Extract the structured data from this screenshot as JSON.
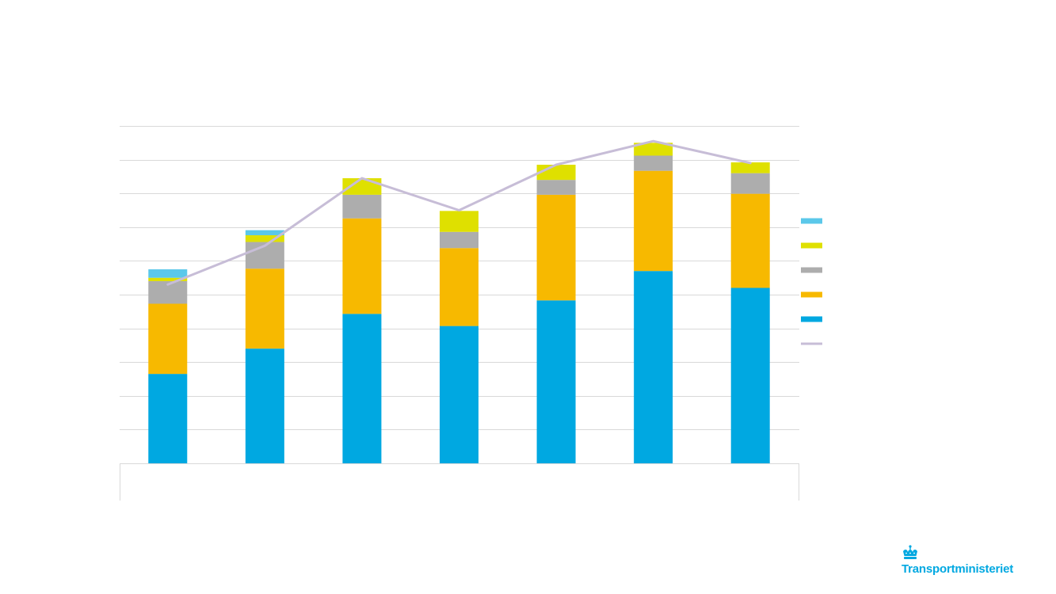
{
  "colors": {
    "series_1": "#5bc8ea",
    "series_2": "#dfe000",
    "series_3": "#adadad",
    "series_4": "#f7b900",
    "series_5": "#00a8e1",
    "line": "#c7bdd7",
    "grid": "#d9d9d9",
    "logo": "#00a8e1"
  },
  "brand": {
    "name": "Transportministeriet",
    "icon": "crown-icon"
  },
  "chart_data": {
    "type": "bar",
    "stacked": true,
    "title": "",
    "xlabel": "",
    "ylabel": "",
    "ylim": [
      0,
      10
    ],
    "grid": true,
    "legend_position": "right",
    "categories": [
      "",
      "",
      "",
      "",
      "",
      "",
      ""
    ],
    "series": [
      {
        "key": "series_5",
        "type": "bar",
        "values": [
          2.65,
          3.4,
          4.43,
          4.07,
          4.83,
          5.7,
          5.2
        ]
      },
      {
        "key": "series_4",
        "type": "bar",
        "values": [
          2.08,
          2.37,
          2.83,
          2.31,
          3.13,
          2.97,
          2.79
        ]
      },
      {
        "key": "series_3",
        "type": "bar",
        "values": [
          0.67,
          0.79,
          0.7,
          0.48,
          0.44,
          0.45,
          0.61
        ]
      },
      {
        "key": "series_2",
        "type": "bar",
        "values": [
          0.1,
          0.2,
          0.49,
          0.62,
          0.45,
          0.38,
          0.32
        ]
      },
      {
        "key": "series_1",
        "type": "bar",
        "values": [
          0.25,
          0.15,
          0,
          0,
          0,
          0,
          0
        ]
      },
      {
        "key": "line",
        "type": "line",
        "values": [
          5.3,
          6.45,
          8.45,
          7.5,
          8.85,
          9.55,
          8.9
        ]
      }
    ],
    "legend_order": [
      "series_1",
      "series_2",
      "series_3",
      "series_4",
      "series_5",
      "line"
    ]
  }
}
